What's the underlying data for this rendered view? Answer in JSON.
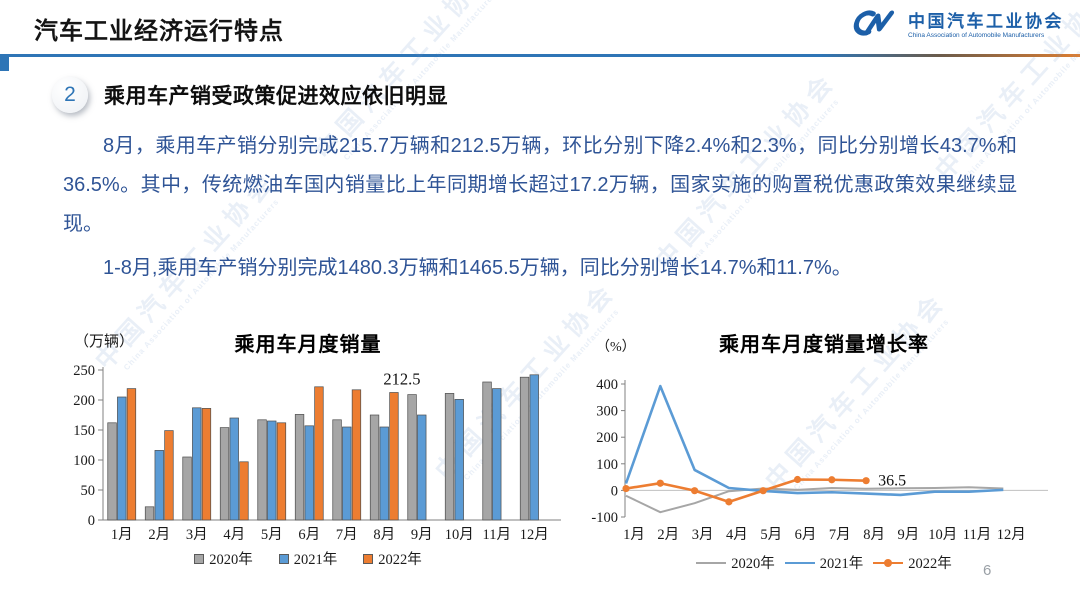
{
  "header": {
    "title": "汽车工业经济运行特点",
    "logo": {
      "name_cn": "中国汽车工业协会",
      "name_en": "China Association of Automobile Manufacturers"
    }
  },
  "section": {
    "number": "2",
    "heading": "乘用车产销受政策促进效应依旧明显"
  },
  "paragraphs": [
    "8月，乘用车产销分别完成215.7万辆和212.5万辆，环比分别下降2.4%和2.3%，同比分别增长43.7%和36.5%。其中，传统燃油车国内销量比上年同期增长超过17.2万辆，国家实施的购置税优惠政策效果继续显现。",
    "1-8月,乘用车产销分别完成1480.3万辆和1465.5万辆，同比分别增长14.7%和11.7%。"
  ],
  "page_number": "6",
  "watermark_text": "中国汽车工业协会",
  "watermark_text_en": "China Association of Automobile Manufacturers",
  "colors": {
    "accent_blue": "#2E75B6",
    "accent_orange": "#DD7E32",
    "series_gray": "#A6A6A6",
    "series_blue": "#5B9BD5",
    "series_orange": "#ED7D31",
    "body_text": "#2F5496",
    "logo_blue": "#1C5FA8"
  },
  "chart_data": [
    {
      "type": "bar",
      "title": "乘用车月度销量",
      "unit_label": "（万辆）",
      "categories": [
        "1月",
        "2月",
        "3月",
        "4月",
        "5月",
        "6月",
        "7月",
        "8月",
        "9月",
        "10月",
        "11月",
        "12月"
      ],
      "series": [
        {
          "name": "2020年",
          "color_key": "series_gray",
          "values": [
            162,
            22,
            105,
            154,
            167,
            176,
            167,
            175,
            209,
            211,
            230,
            238
          ]
        },
        {
          "name": "2021年",
          "color_key": "series_blue",
          "values": [
            205,
            116,
            187,
            170,
            165,
            157,
            155,
            155,
            175,
            201,
            219,
            242
          ]
        },
        {
          "name": "2022年",
          "color_key": "series_orange",
          "values": [
            219,
            149,
            186,
            97,
            162,
            222,
            217,
            212.5
          ]
        }
      ],
      "ylim": [
        0,
        250
      ],
      "yticks": [
        0,
        50,
        100,
        150,
        200,
        250
      ],
      "annotation": {
        "text": "212.5",
        "series": "2022年",
        "category": "8月"
      },
      "legend_position": "bottom",
      "grid": false
    },
    {
      "type": "line",
      "title": "乘用车月度销量增长率",
      "unit_label": "（%）",
      "categories": [
        "1月",
        "2月",
        "3月",
        "4月",
        "5月",
        "6月",
        "7月",
        "8月",
        "9月",
        "10月",
        "11月",
        "12月"
      ],
      "series": [
        {
          "name": "2020年",
          "color_key": "series_gray",
          "marker": false,
          "values": [
            -20,
            -82,
            -48,
            -3,
            7,
            2,
            9,
            6,
            8,
            9,
            12,
            7
          ]
        },
        {
          "name": "2021年",
          "color_key": "series_blue",
          "marker": false,
          "values": [
            26,
            392,
            77,
            9,
            -2,
            -10,
            -7,
            -12,
            -17,
            -5,
            -5,
            2
          ]
        },
        {
          "name": "2022年",
          "color_key": "series_orange",
          "marker": true,
          "values": [
            7,
            27,
            -1,
            -43,
            -1,
            41,
            40,
            36.5
          ]
        }
      ],
      "ylim": [
        -100,
        400
      ],
      "yticks": [
        -100,
        0,
        100,
        200,
        300,
        400
      ],
      "annotation": {
        "text": "36.5",
        "series": "2022年",
        "category": "8月"
      },
      "legend_position": "bottom",
      "grid": false
    }
  ]
}
